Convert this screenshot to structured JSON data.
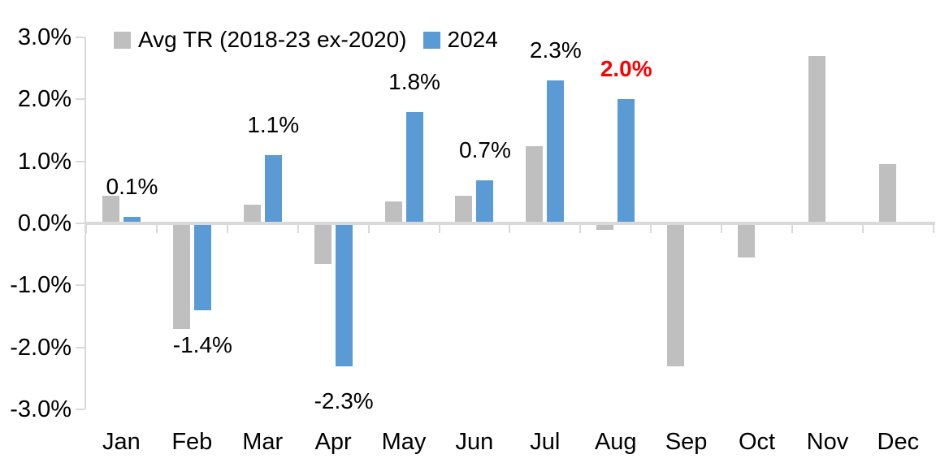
{
  "chart_data": {
    "type": "bar",
    "title": "",
    "categories": [
      "Jan",
      "Feb",
      "Mar",
      "Apr",
      "May",
      "Jun",
      "Jul",
      "Aug",
      "Sep",
      "Oct",
      "Nov",
      "Dec"
    ],
    "series": [
      {
        "name": "Avg TR (2018-23 ex-2020)",
        "color": "#BFBFBF",
        "values": [
          0.45,
          -1.7,
          0.3,
          -0.65,
          0.35,
          0.45,
          1.25,
          -0.1,
          -2.3,
          -0.55,
          2.7,
          0.95
        ]
      },
      {
        "name": "2024",
        "color": "#5B9BD5",
        "values": [
          0.1,
          -1.4,
          1.1,
          -2.3,
          1.8,
          0.7,
          2.3,
          2.0,
          null,
          null,
          null,
          null
        ]
      }
    ],
    "data_labels": [
      {
        "category": "Jan",
        "text": "0.1%",
        "color": "#000000",
        "bold": false
      },
      {
        "category": "Feb",
        "text": "-1.4%",
        "color": "#000000",
        "bold": false
      },
      {
        "category": "Mar",
        "text": "1.1%",
        "color": "#000000",
        "bold": false
      },
      {
        "category": "Apr",
        "text": "-2.3%",
        "color": "#000000",
        "bold": false
      },
      {
        "category": "May",
        "text": "1.8%",
        "color": "#000000",
        "bold": false
      },
      {
        "category": "Jun",
        "text": "0.7%",
        "color": "#000000",
        "bold": false
      },
      {
        "category": "Jul",
        "text": "2.3%",
        "color": "#000000",
        "bold": false
      },
      {
        "category": "Aug",
        "text": "2.0%",
        "color": "#FF0000",
        "bold": true
      }
    ],
    "y_axis": {
      "tick_labels": [
        "3.0%",
        "2.0%",
        "1.0%",
        "0.0%",
        "-1.0%",
        "-2.0%",
        "-3.0%"
      ],
      "tick_values": [
        3,
        2,
        1,
        0,
        -1,
        -2,
        -3
      ],
      "min": -3,
      "max": 3,
      "unit": "percent"
    },
    "x_axis": {
      "tick_labels": [
        "Jan",
        "Feb",
        "Mar",
        "Apr",
        "May",
        "Jun",
        "Jul",
        "Aug",
        "Sep",
        "Oct",
        "Nov",
        "Dec"
      ]
    },
    "legend": {
      "position": "top",
      "entries": [
        {
          "label": "Avg TR (2018-23 ex-2020)",
          "color": "#BFBFBF"
        },
        {
          "label": "2024",
          "color": "#5B9BD5"
        }
      ]
    },
    "grid": false,
    "axis_color": "#D9D9D9",
    "highlight_color": "#FF0000"
  }
}
